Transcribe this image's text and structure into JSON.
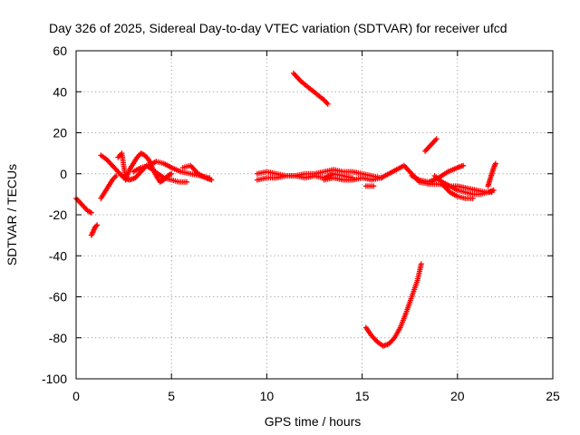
{
  "chart_data": {
    "type": "scatter",
    "title": "Day 326 of 2025, Sidereal Day-to-day VTEC variation (SDTVAR) for receiver ufcd",
    "xlabel": "GPS time / hours",
    "ylabel": "SDTVAR / TECUs",
    "xlim": [
      0,
      25
    ],
    "ylim": [
      -100,
      60
    ],
    "xticks": [
      "0",
      "5",
      "10",
      "15",
      "20",
      "25"
    ],
    "yticks": [
      "-100",
      "-80",
      "-60",
      "-40",
      "-20",
      "0",
      "20",
      "40",
      "60"
    ],
    "grid": true,
    "marker": "+",
    "color": "#ff0000",
    "series": [
      {
        "x": [
          0.0,
          0.2,
          0.4,
          0.6,
          0.8
        ],
        "y": [
          -12,
          -14,
          -16,
          -18,
          -19
        ]
      },
      {
        "x": [
          0.8,
          0.9,
          1.0,
          1.1
        ],
        "y": [
          -30,
          -28,
          -26,
          -25
        ]
      },
      {
        "x": [
          1.3,
          1.5,
          1.7,
          1.9,
          2.1
        ],
        "y": [
          -12,
          -9,
          -6,
          -3,
          -1
        ]
      },
      {
        "x": [
          1.3,
          1.6,
          1.9,
          2.2,
          2.5,
          2.8,
          3.1,
          3.4,
          3.7,
          4.0,
          4.3,
          4.6,
          5.0,
          5.4,
          5.8
        ],
        "y": [
          9,
          7,
          4,
          1,
          -2,
          -3,
          -2,
          1,
          4,
          2,
          0,
          -2,
          -3,
          -4,
          -4
        ]
      },
      {
        "x": [
          2.2,
          2.4,
          2.6,
          2.8,
          3.0,
          3.2,
          3.4,
          3.6,
          3.8,
          4.0,
          4.2,
          4.4,
          4.6,
          4.8,
          5.0
        ],
        "y": [
          8,
          10,
          -3,
          2,
          5,
          8,
          10,
          9,
          7,
          3,
          -1,
          -4,
          -3,
          -1,
          0
        ]
      },
      {
        "x": [
          3.0,
          3.4,
          3.8,
          4.2,
          4.6,
          5.0,
          5.5,
          6.0,
          6.5,
          7.0
        ],
        "y": [
          1,
          3,
          4,
          6,
          5,
          3,
          1,
          0,
          -1,
          -2
        ]
      },
      {
        "x": [
          5.6,
          6.0,
          6.4,
          6.8,
          7.1
        ],
        "y": [
          3,
          4,
          0,
          -2,
          -3
        ]
      },
      {
        "x": [
          9.5,
          10.0,
          10.5,
          11.0,
          11.5,
          12.0,
          12.5,
          13.0,
          13.5,
          14.0,
          14.5
        ],
        "y": [
          -3,
          -2,
          -2,
          -1,
          -1,
          -2,
          -1,
          -2,
          0,
          -1,
          -2
        ]
      },
      {
        "x": [
          9.5,
          10.0,
          10.5,
          11.0,
          11.5,
          12.0,
          12.5,
          13.0,
          13.5,
          14.0,
          14.5,
          15.0,
          15.5,
          16.0
        ],
        "y": [
          0,
          1,
          0,
          -1,
          -1,
          0,
          0,
          1,
          2,
          1,
          1,
          0,
          -1,
          -2
        ]
      },
      {
        "x": [
          13.0,
          13.5,
          14.0,
          14.5,
          15.0,
          15.5,
          16.0
        ],
        "y": [
          -3,
          -2,
          -3,
          -3,
          -2,
          -3,
          -2
        ]
      },
      {
        "x": [
          15.2,
          15.4,
          15.6
        ],
        "y": [
          -6,
          -6,
          -6
        ]
      },
      {
        "x": [
          16.0,
          16.4,
          16.8,
          17.2,
          17.6,
          18.0
        ],
        "y": [
          -2,
          0,
          2,
          4,
          0,
          -4
        ]
      },
      {
        "x": [
          11.4,
          11.8,
          12.2,
          12.6,
          13.0,
          13.2
        ],
        "y": [
          49,
          45,
          42,
          39,
          36,
          34
        ]
      },
      {
        "x": [
          15.2,
          15.5,
          15.8,
          16.1,
          16.4,
          16.7,
          17.0,
          17.3,
          17.6,
          17.9,
          18.1
        ],
        "y": [
          -75,
          -79,
          -82,
          -84,
          -83,
          -80,
          -75,
          -68,
          -60,
          -52,
          -44
        ]
      },
      {
        "x": [
          18.3,
          18.5,
          18.7,
          18.9
        ],
        "y": [
          11,
          13,
          15,
          17
        ]
      },
      {
        "x": [
          17.6,
          18.0,
          18.5,
          19.0,
          19.5,
          20.0,
          20.3
        ],
        "y": [
          -1,
          -3,
          -4,
          -2,
          1,
          3,
          4
        ]
      },
      {
        "x": [
          18.0,
          18.5,
          19.0,
          19.5,
          20.0,
          20.5,
          21.0,
          21.5,
          21.8
        ],
        "y": [
          -4,
          -5,
          -5,
          -6,
          -6,
          -7,
          -8,
          -9,
          -9
        ]
      },
      {
        "x": [
          18.8,
          19.2,
          19.6,
          20.0,
          20.4,
          20.8,
          21.2,
          21.6,
          21.9
        ],
        "y": [
          -1,
          -4,
          -6,
          -8,
          -9,
          -10,
          -10,
          -9,
          -8
        ]
      },
      {
        "x": [
          19.2,
          19.6,
          20.0,
          20.4,
          20.8
        ],
        "y": [
          -5,
          -9,
          -11,
          -12,
          -12
        ]
      },
      {
        "x": [
          21.6,
          21.7,
          21.8,
          21.9,
          22.0
        ],
        "y": [
          -6,
          -3,
          0,
          3,
          5
        ]
      }
    ]
  }
}
